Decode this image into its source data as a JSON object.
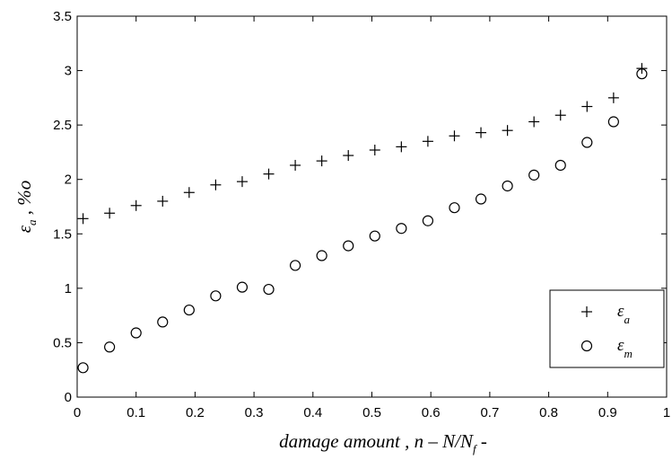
{
  "chart_data": {
    "type": "scatter",
    "xlabel": {
      "main": "damage amount , n – N/N",
      "sub": "f",
      "tail": " -"
    },
    "ylabel": {
      "main": "ε",
      "sub": "a",
      "tail": " , %o"
    },
    "xlim": [
      0,
      1
    ],
    "ylim": [
      0,
      3.5
    ],
    "xticks": [
      "0",
      "0.1",
      "0.2",
      "0.3",
      "0.4",
      "0.5",
      "0.6",
      "0.7",
      "0.8",
      "0.9",
      "1"
    ],
    "yticks": [
      "0",
      "0.5",
      "1",
      "1.5",
      "2",
      "2.5",
      "3",
      "3.5"
    ],
    "grid": false,
    "legend_position": "bottom-right",
    "series": [
      {
        "name": "ε_a",
        "legend_main": "ε",
        "legend_sub": "a",
        "marker": "plus",
        "x": [
          0.01,
          0.055,
          0.1,
          0.145,
          0.19,
          0.235,
          0.28,
          0.325,
          0.37,
          0.415,
          0.46,
          0.505,
          0.55,
          0.595,
          0.64,
          0.685,
          0.73,
          0.775,
          0.82,
          0.865,
          0.91,
          0.958
        ],
        "y": [
          1.64,
          1.69,
          1.76,
          1.8,
          1.88,
          1.95,
          1.98,
          2.05,
          2.13,
          2.17,
          2.22,
          2.27,
          2.3,
          2.35,
          2.4,
          2.43,
          2.45,
          2.53,
          2.59,
          2.67,
          2.75,
          3.02
        ]
      },
      {
        "name": "ε_m",
        "legend_main": "ε",
        "legend_sub": "m",
        "marker": "circle",
        "x": [
          0.01,
          0.055,
          0.1,
          0.145,
          0.19,
          0.235,
          0.28,
          0.325,
          0.37,
          0.415,
          0.46,
          0.505,
          0.55,
          0.595,
          0.64,
          0.685,
          0.73,
          0.775,
          0.82,
          0.865,
          0.91,
          0.958
        ],
        "y": [
          0.27,
          0.46,
          0.59,
          0.69,
          0.8,
          0.93,
          1.01,
          0.99,
          1.21,
          1.3,
          1.39,
          1.48,
          1.55,
          1.62,
          1.74,
          1.82,
          1.94,
          2.04,
          2.13,
          2.34,
          2.53,
          2.97
        ]
      }
    ]
  }
}
